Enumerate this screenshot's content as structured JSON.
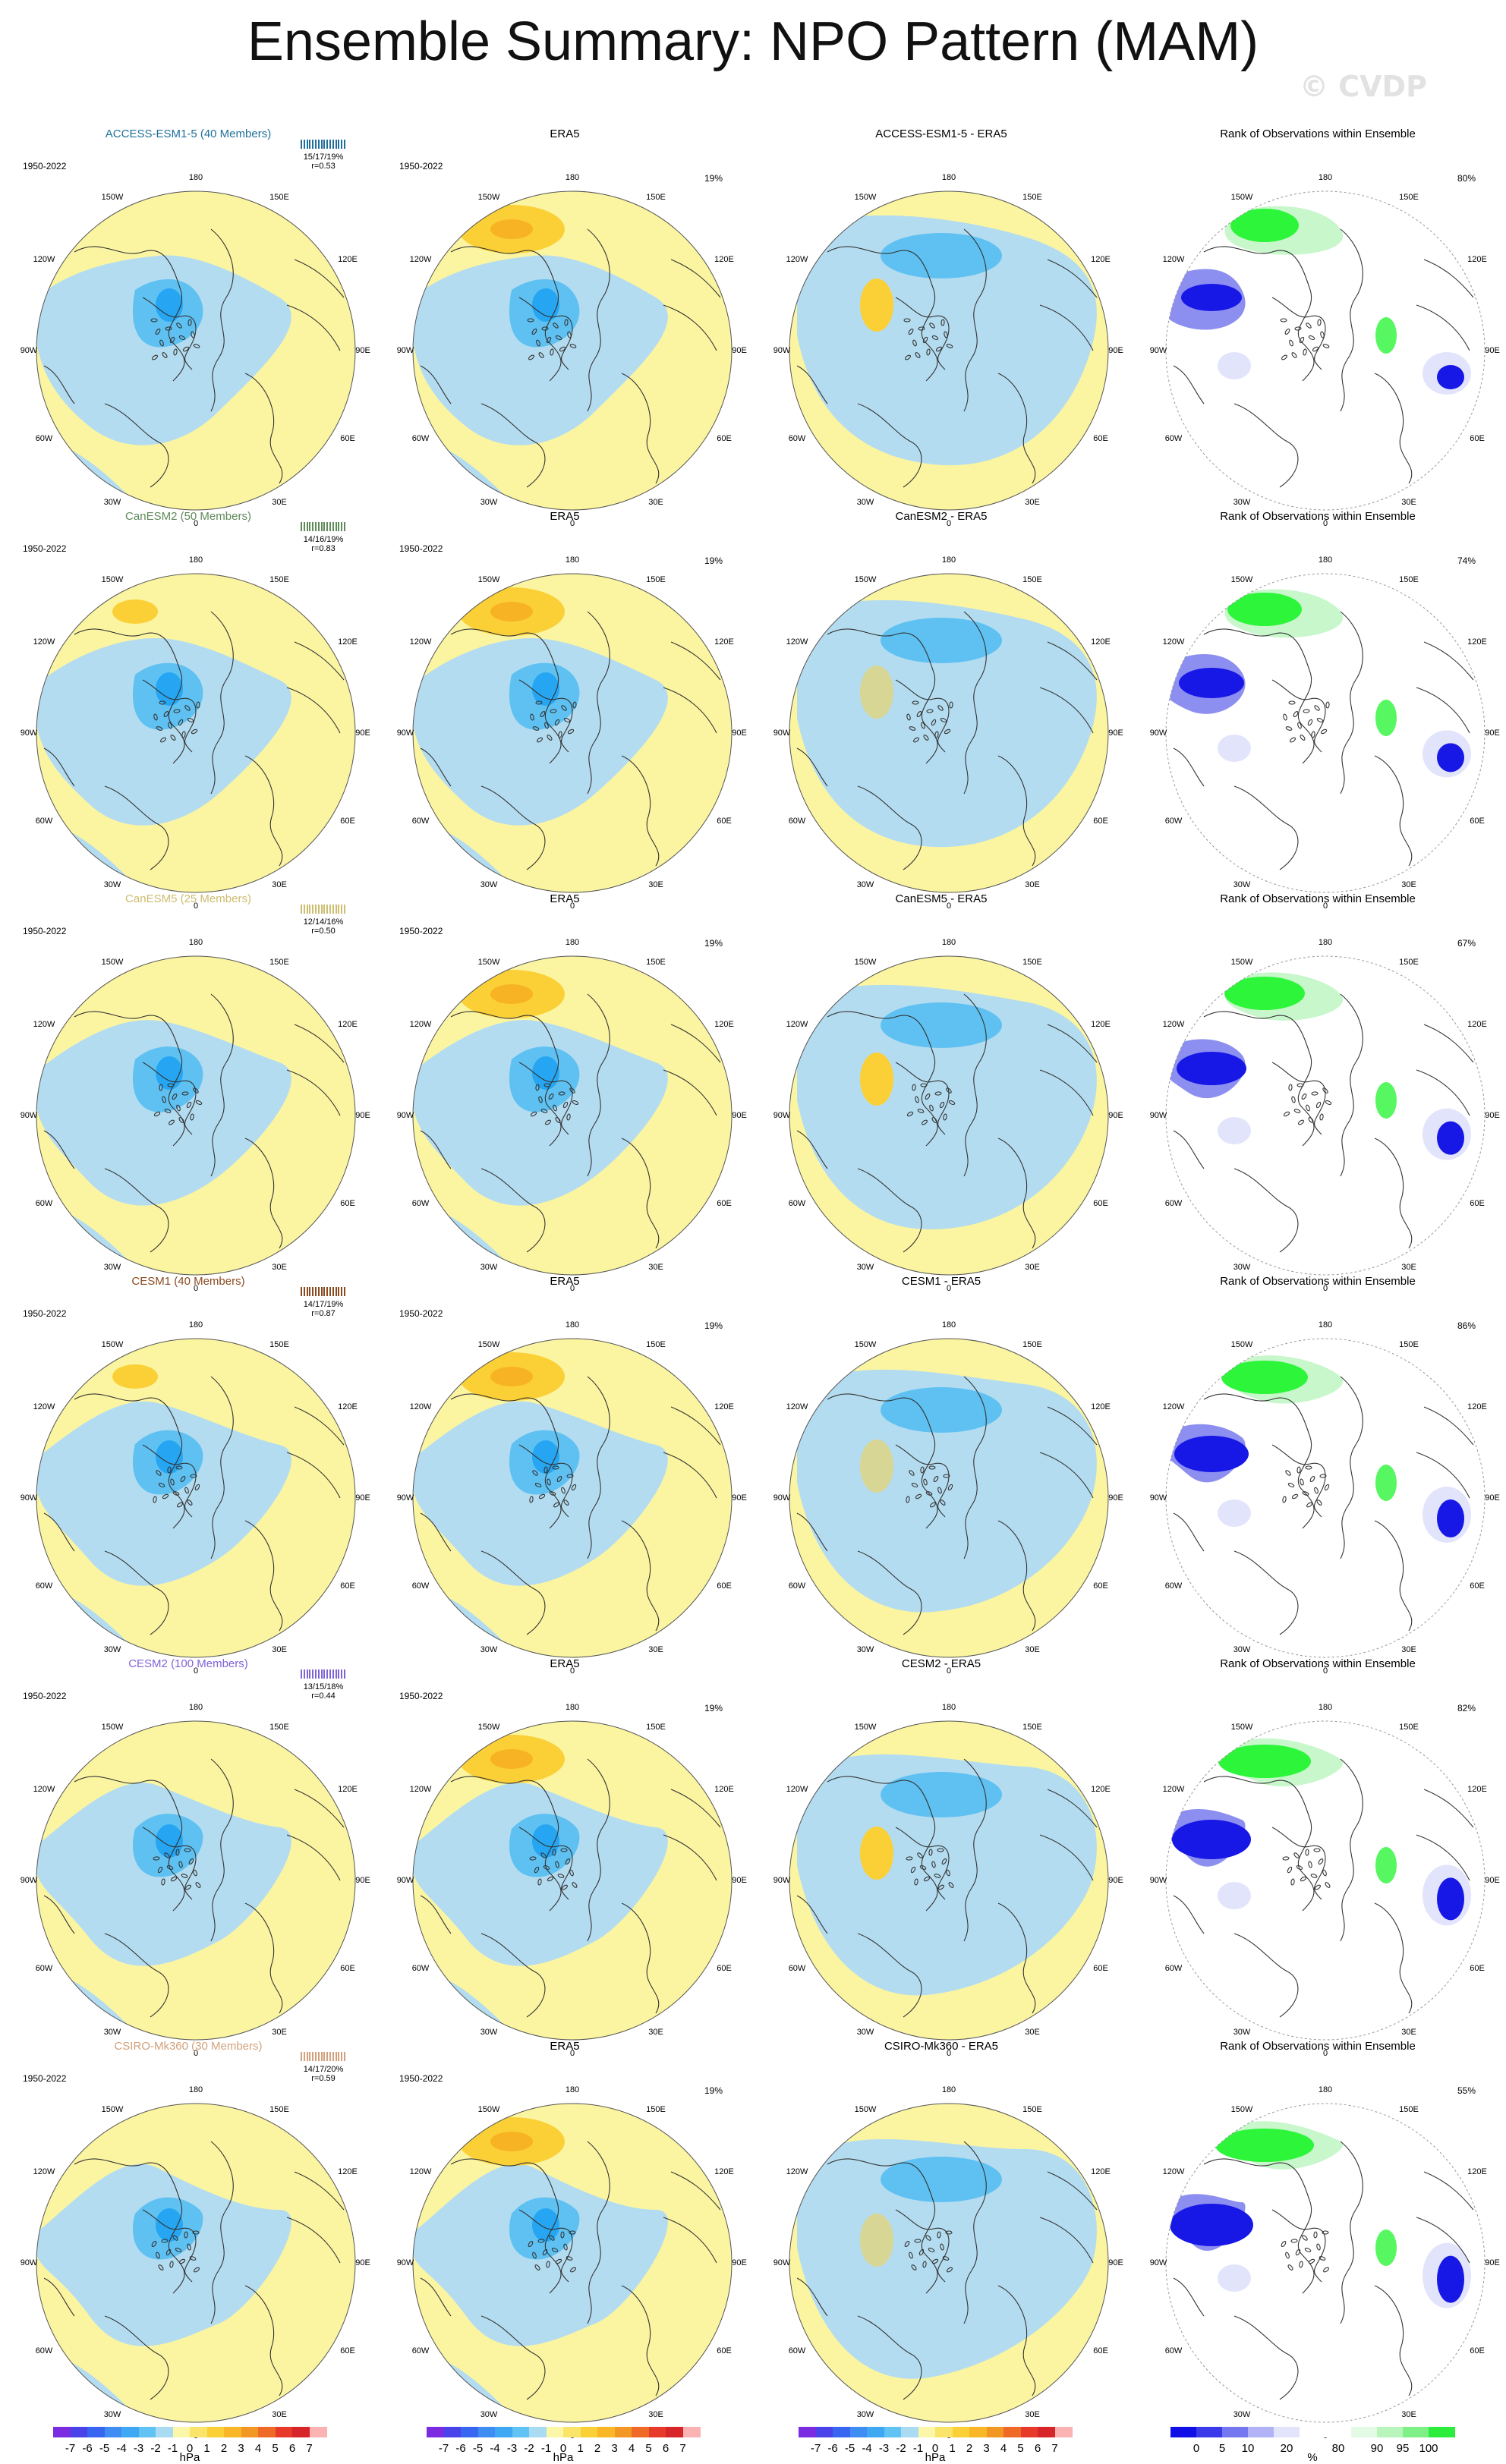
{
  "title": "Ensemble Summary: NPO Pattern (MAM)",
  "watermark": "© CVDP",
  "colors": {
    "blue3": "#26a6f2",
    "blue2": "#5ec1f2",
    "blue1": "#b4dcf0",
    "yellow": "#fbf5a1",
    "orange1": "#fbd037",
    "orange2": "#f7b324",
    "green": "#2df53a",
    "lightgreen": "#c7f7cb",
    "darkblue": "#1717e6",
    "midblue": "#8c8ff0",
    "paleblue": "#e2e4fb"
  },
  "labels": {
    "top": "180",
    "tl": "150W",
    "tr": "150E",
    "ul": "120W",
    "ur": "120E",
    "ml": "90W",
    "mr": "90E",
    "ll": "60W",
    "lr": "60E",
    "bl": "30W",
    "br": "30E",
    "bottom": "0"
  },
  "rows": [
    {
      "model": "ACCESS-ESM1-5 (40 Members)",
      "model_color": "#1f6f9a",
      "period": "1950-2022",
      "rank_line1": "15/17/19%",
      "rank_line2": "r=0.53",
      "diff_title": "ACCESS-ESM1-5 - ERA5",
      "rank_pct": "80%",
      "era_pct": "19%",
      "shift": 0
    },
    {
      "model": "CanESM2 (50 Members)",
      "model_color": "#5f8a5a",
      "period": "1950-2022",
      "rank_line1": "14/16/19%",
      "rank_line2": "r=0.83",
      "diff_title": "CanESM2 - ERA5",
      "rank_pct": "74%",
      "era_pct": "19%",
      "shift": 1
    },
    {
      "model": "CanESM5 (25 Members)",
      "model_color": "#cdbd6e",
      "period": "1950-2022",
      "rank_line1": "12/14/16%",
      "rank_line2": "r=0.50",
      "diff_title": "CanESM5 - ERA5",
      "rank_pct": "67%",
      "era_pct": "19%",
      "shift": 2
    },
    {
      "model": "CESM1 (40 Members)",
      "model_color": "#8b4a1f",
      "period": "1950-2022",
      "rank_line1": "14/17/19%",
      "rank_line2": "r=0.87",
      "diff_title": "CESM1 - ERA5",
      "rank_pct": "86%",
      "era_pct": "19%",
      "shift": 3
    },
    {
      "model": "CESM2 (100 Members)",
      "model_color": "#8064d6",
      "period": "1950-2022",
      "rank_line1": "13/15/18%",
      "rank_line2": "r=0.44",
      "diff_title": "CESM2 - ERA5",
      "rank_pct": "82%",
      "era_pct": "19%",
      "shift": 4
    },
    {
      "model": "CSIRO-Mk360 (30 Members)",
      "model_color": "#d2a07a",
      "period": "1950-2022",
      "rank_line1": "14/17/20%",
      "rank_line2": "r=0.59",
      "diff_title": "CSIRO-Mk360 - ERA5",
      "rank_pct": "55%",
      "era_pct": "19%",
      "shift": 5
    }
  ],
  "era_title": "ERA5",
  "rank_title": "Rank of Observations within Ensemble",
  "colorbar_hpa": {
    "colors": [
      "#7b2be0",
      "#4b43ea",
      "#3866f0",
      "#3f8cf2",
      "#3fa8f3",
      "#61c2f4",
      "#a9dcf3",
      "#fbf6a8",
      "#fbe46a",
      "#fbd037",
      "#f9b727",
      "#f29724",
      "#ef6a27",
      "#e73a2b",
      "#d8252a",
      "#fbb2b2"
    ],
    "ticks": [
      "-7",
      "-6",
      "-5",
      "-4",
      "-3",
      "-2",
      "-1",
      "0",
      "1",
      "2",
      "3",
      "4",
      "5",
      "6",
      "7"
    ],
    "units": "hPa"
  },
  "colorbar_rank": {
    "colors": [
      "#0f0fe6",
      "#3a3aea",
      "#7477ef",
      "#b1b3f6",
      "#e2e4fb",
      "#ffffff",
      "#ffffff",
      "#e3fbe5",
      "#b8f5bd",
      "#7ff087",
      "#2ded3c"
    ],
    "ticks": [
      "0",
      "5",
      "10",
      "20",
      "80",
      "90",
      "95",
      "100"
    ],
    "units": "%"
  }
}
